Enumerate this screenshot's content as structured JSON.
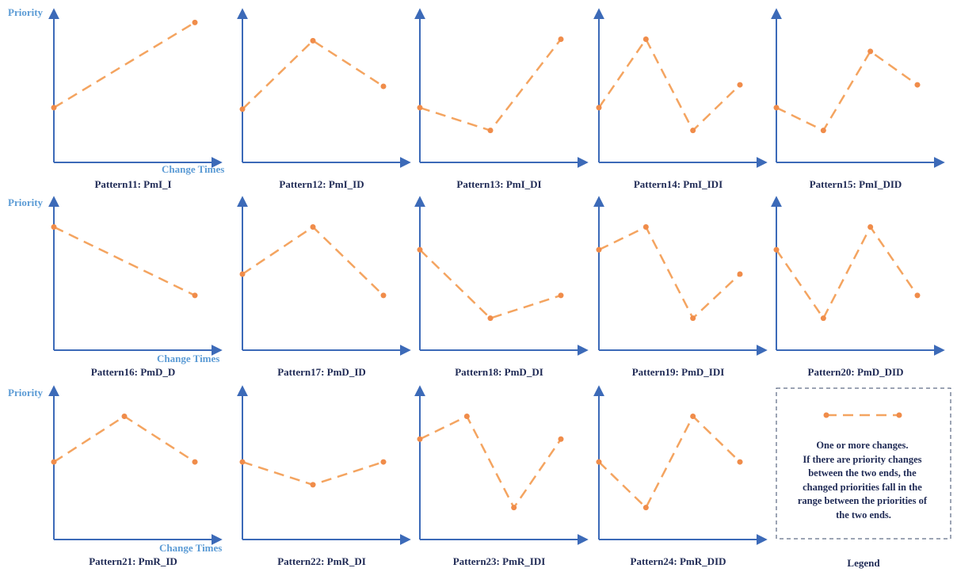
{
  "axis_labels": {
    "y": "Priority",
    "x": "Change Times"
  },
  "colors": {
    "axis": "#3c6ab8",
    "axis_label": "#5b9bd5",
    "line": "#f4a460",
    "point": "#f08c4a",
    "caption": "#1f2a55",
    "legend_border": "#3a4a6a"
  },
  "chart_data": [
    {
      "type": "line",
      "name_caption": "Pattern11: PmI_I",
      "values": [
        0.36,
        0.92
      ]
    },
    {
      "type": "line",
      "name_caption": "Pattern12: PmI_ID",
      "values": [
        0.35,
        0.8,
        0.5
      ]
    },
    {
      "type": "line",
      "name_caption": "Pattern13: PmI_DI",
      "values": [
        0.36,
        0.21,
        0.81
      ]
    },
    {
      "type": "line",
      "name_caption": "Pattern14: PmI_IDI",
      "values": [
        0.36,
        0.81,
        0.21,
        0.51
      ]
    },
    {
      "type": "line",
      "name_caption": "Pattern15: PmI_DID",
      "values": [
        0.36,
        0.21,
        0.73,
        0.51
      ]
    },
    {
      "type": "line",
      "name_caption": "Pattern16: PmD_D",
      "values": [
        0.81,
        0.36
      ]
    },
    {
      "type": "line",
      "name_caption": "Pattern17: PmD_ID",
      "values": [
        0.5,
        0.81,
        0.36
      ]
    },
    {
      "type": "line",
      "name_caption": "Pattern18: PmD_DI",
      "values": [
        0.66,
        0.21,
        0.36
      ]
    },
    {
      "type": "line",
      "name_caption": "Pattern19: PmD_IDI",
      "values": [
        0.66,
        0.81,
        0.21,
        0.5
      ]
    },
    {
      "type": "line",
      "name_caption": "Pattern20: PmD_DID",
      "values": [
        0.66,
        0.21,
        0.81,
        0.36
      ]
    },
    {
      "type": "line",
      "name_caption": "Pattern21: PmR_ID",
      "values": [
        0.51,
        0.81,
        0.51
      ]
    },
    {
      "type": "line",
      "name_caption": "Pattern22: PmR_DI",
      "values": [
        0.51,
        0.36,
        0.51
      ]
    },
    {
      "type": "line",
      "name_caption": "Pattern23: PmR_IDI",
      "values": [
        0.66,
        0.81,
        0.21,
        0.66
      ]
    },
    {
      "type": "line",
      "name_caption": "Pattern24: PmR_DID",
      "values": [
        0.51,
        0.21,
        0.81,
        0.51
      ]
    }
  ],
  "legend": {
    "caption": "Legend",
    "lines": [
      "One or more changes.",
      "If there are priority changes",
      "between the two ends, the",
      "changed priorities fall  in the",
      "range between the priorities of",
      "the two ends."
    ]
  }
}
